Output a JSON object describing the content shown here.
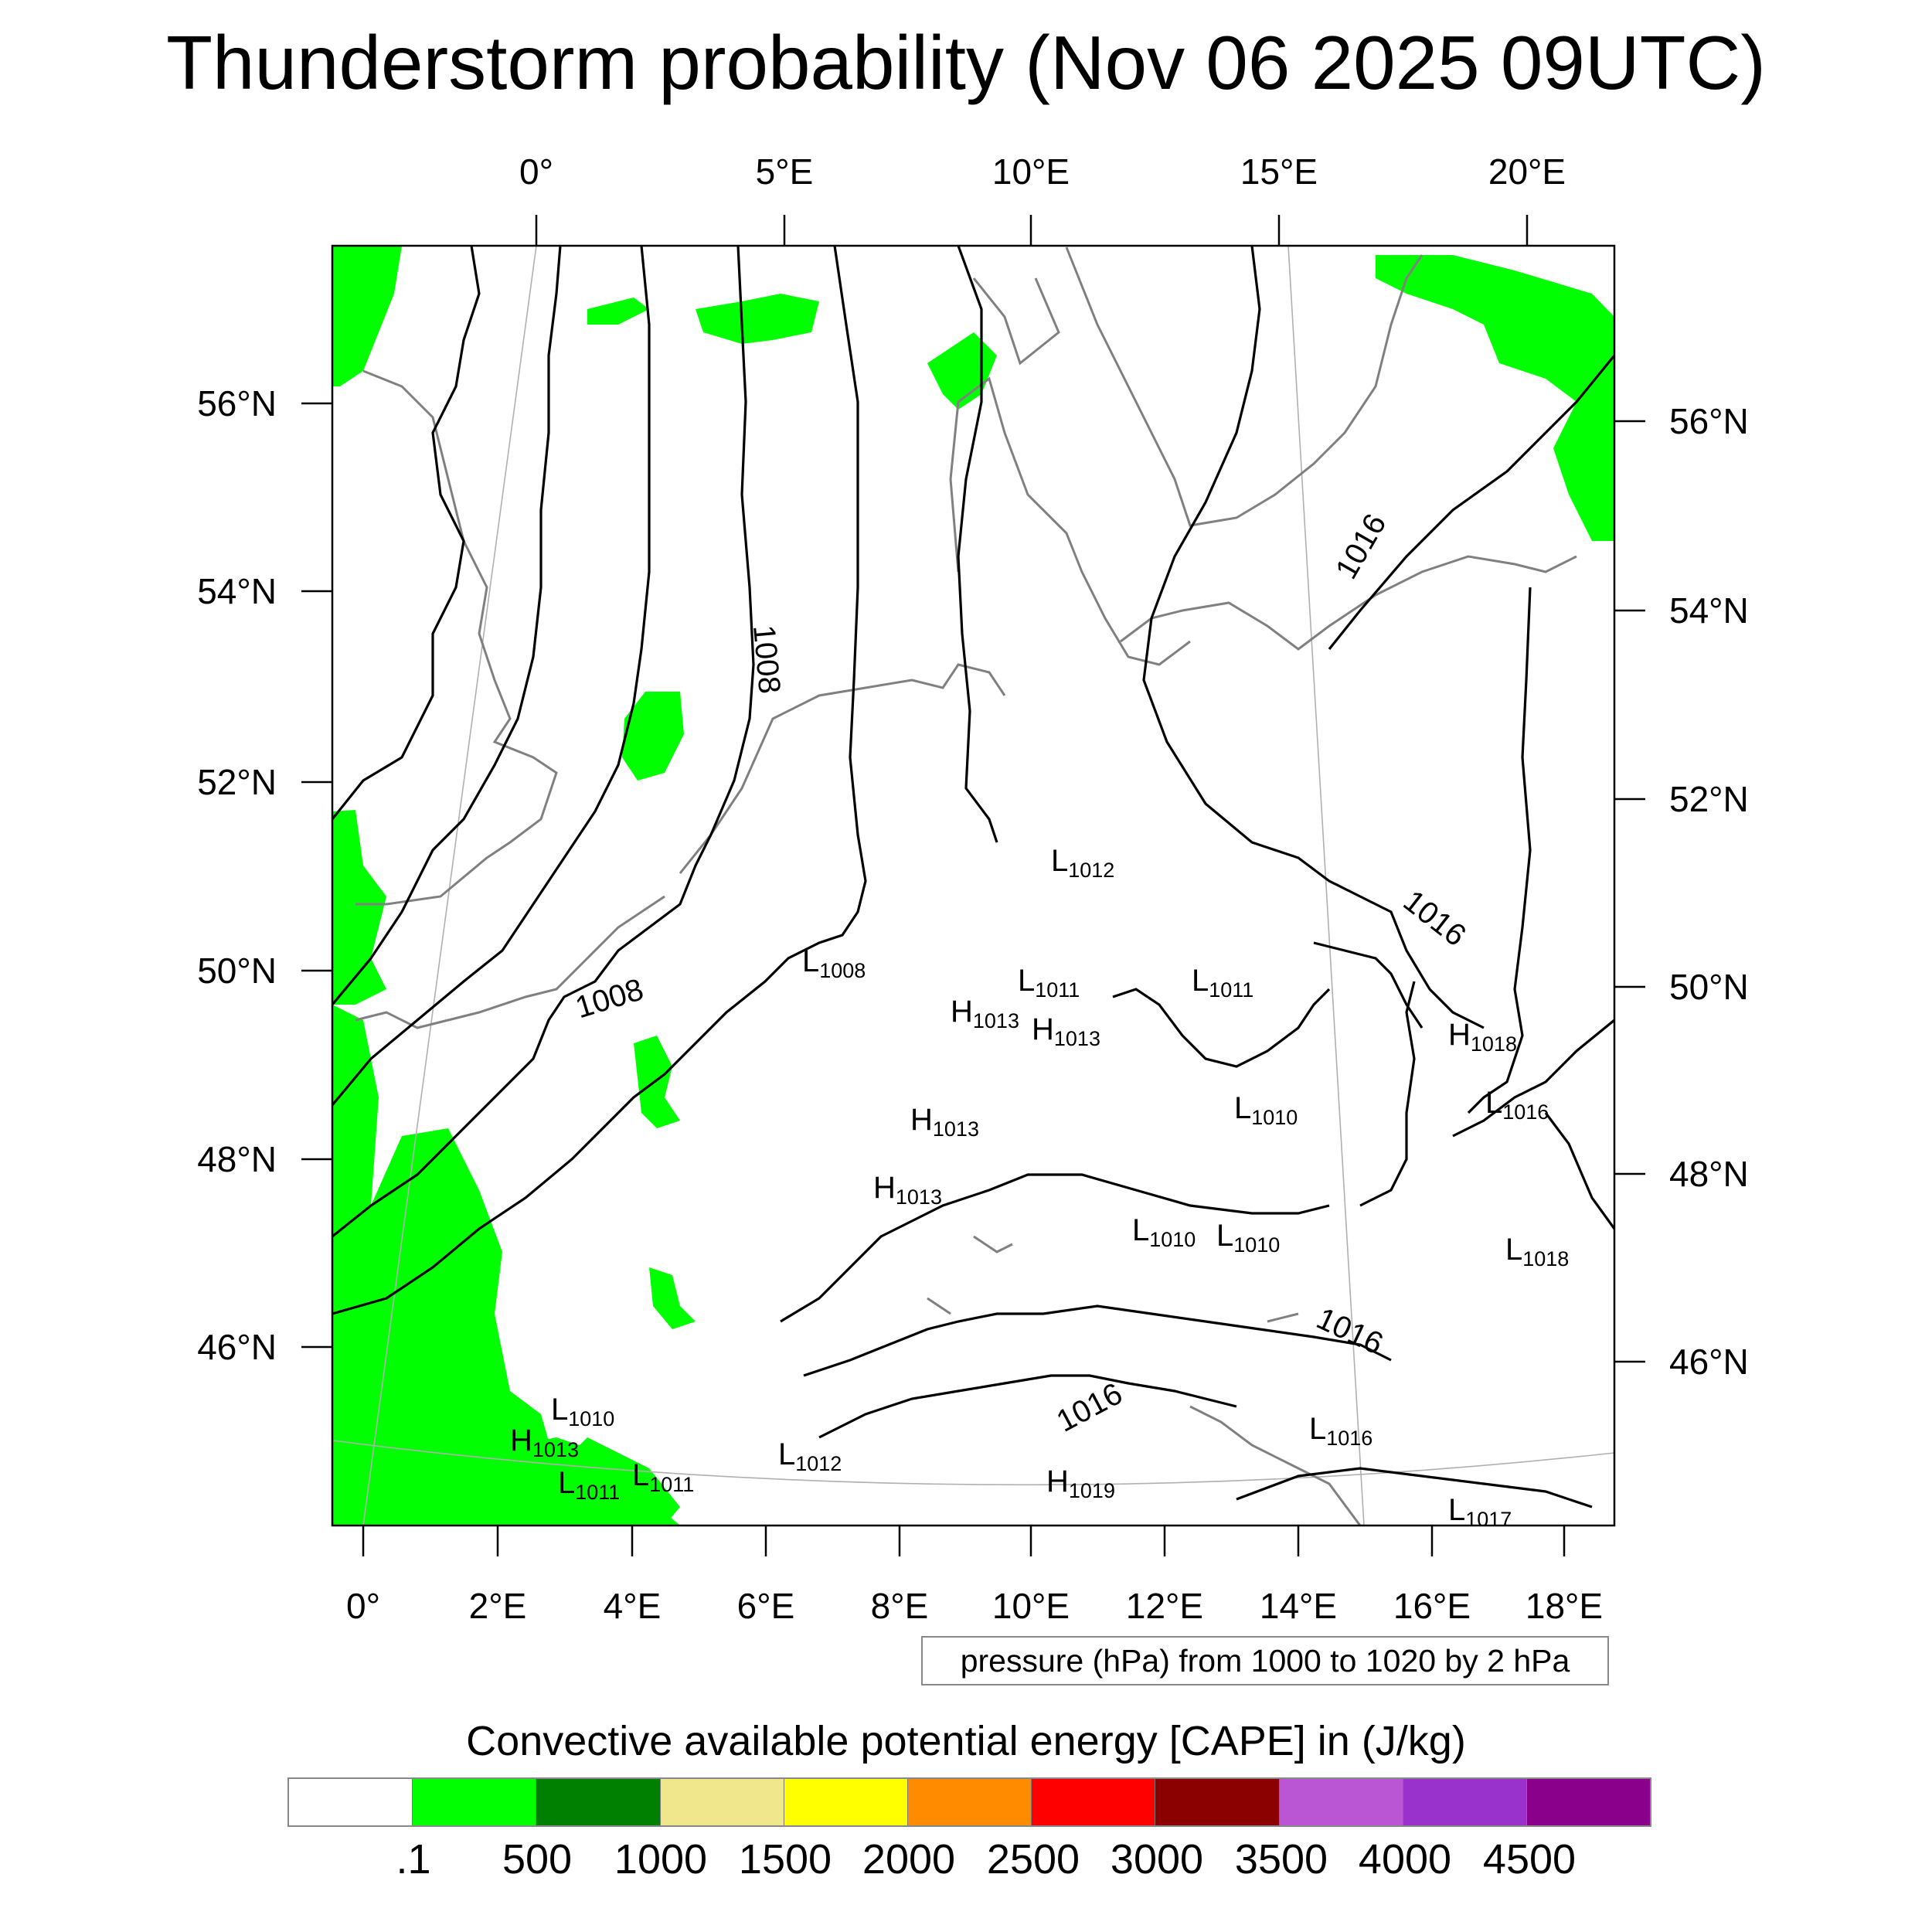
{
  "title": "Thunderstorm probability (Nov 06 2025 09UTC)",
  "top_lon_ticks": [
    "0°",
    "5°E",
    "10°E",
    "15°E",
    "20°E"
  ],
  "bottom_lon_ticks": [
    "0°",
    "2°E",
    "4°E",
    "6°E",
    "8°E",
    "10°E",
    "12°E",
    "14°E",
    "16°E",
    "18°E"
  ],
  "left_lat_ticks": [
    "56°N",
    "54°N",
    "52°N",
    "50°N",
    "48°N",
    "46°N"
  ],
  "right_lat_ticks": [
    "56°N",
    "54°N",
    "52°N",
    "50°N",
    "48°N",
    "46°N"
  ],
  "contour_labels": [
    "1008",
    "1008",
    "1016",
    "1016",
    "1016",
    "1016"
  ],
  "pressure_centers": [
    {
      "letter": "L",
      "value": "1012"
    },
    {
      "letter": "L",
      "value": "1008"
    },
    {
      "letter": "L",
      "value": "1011"
    },
    {
      "letter": "L",
      "value": "1011"
    },
    {
      "letter": "H",
      "value": "1013"
    },
    {
      "letter": "H",
      "value": "1013"
    },
    {
      "letter": "H",
      "value": "1018"
    },
    {
      "letter": "L",
      "value": "1010"
    },
    {
      "letter": "L",
      "value": "1016"
    },
    {
      "letter": "H",
      "value": "1013"
    },
    {
      "letter": "H",
      "value": "1013"
    },
    {
      "letter": "L",
      "value": "1010"
    },
    {
      "letter": "L",
      "value": "1010"
    },
    {
      "letter": "L",
      "value": "1018"
    },
    {
      "letter": "L",
      "value": "1010"
    },
    {
      "letter": "H",
      "value": "1013"
    },
    {
      "letter": "L",
      "value": "1011"
    },
    {
      "letter": "L",
      "value": "1011"
    },
    {
      "letter": "L",
      "value": "1012"
    },
    {
      "letter": "H",
      "value": "1019"
    },
    {
      "letter": "L",
      "value": "1016"
    },
    {
      "letter": "L",
      "value": "1017"
    }
  ],
  "pressure_note": "pressure (hPa) from 1000 to 1020 by 2 hPa",
  "colorbar": {
    "title": "Convective available potential energy [CAPE] in (J/kg)",
    "labels": [
      ".1",
      "500",
      "1000",
      "1500",
      "2000",
      "2500",
      "3000",
      "3500",
      "4000",
      "4500"
    ],
    "colors": [
      "#ffffff",
      "#00ff00",
      "#008000",
      "#f0e68c",
      "#ffff00",
      "#ff8c00",
      "#ff0000",
      "#8b0000",
      "#ba55d3",
      "#9932cc",
      "#8b008b"
    ]
  }
}
